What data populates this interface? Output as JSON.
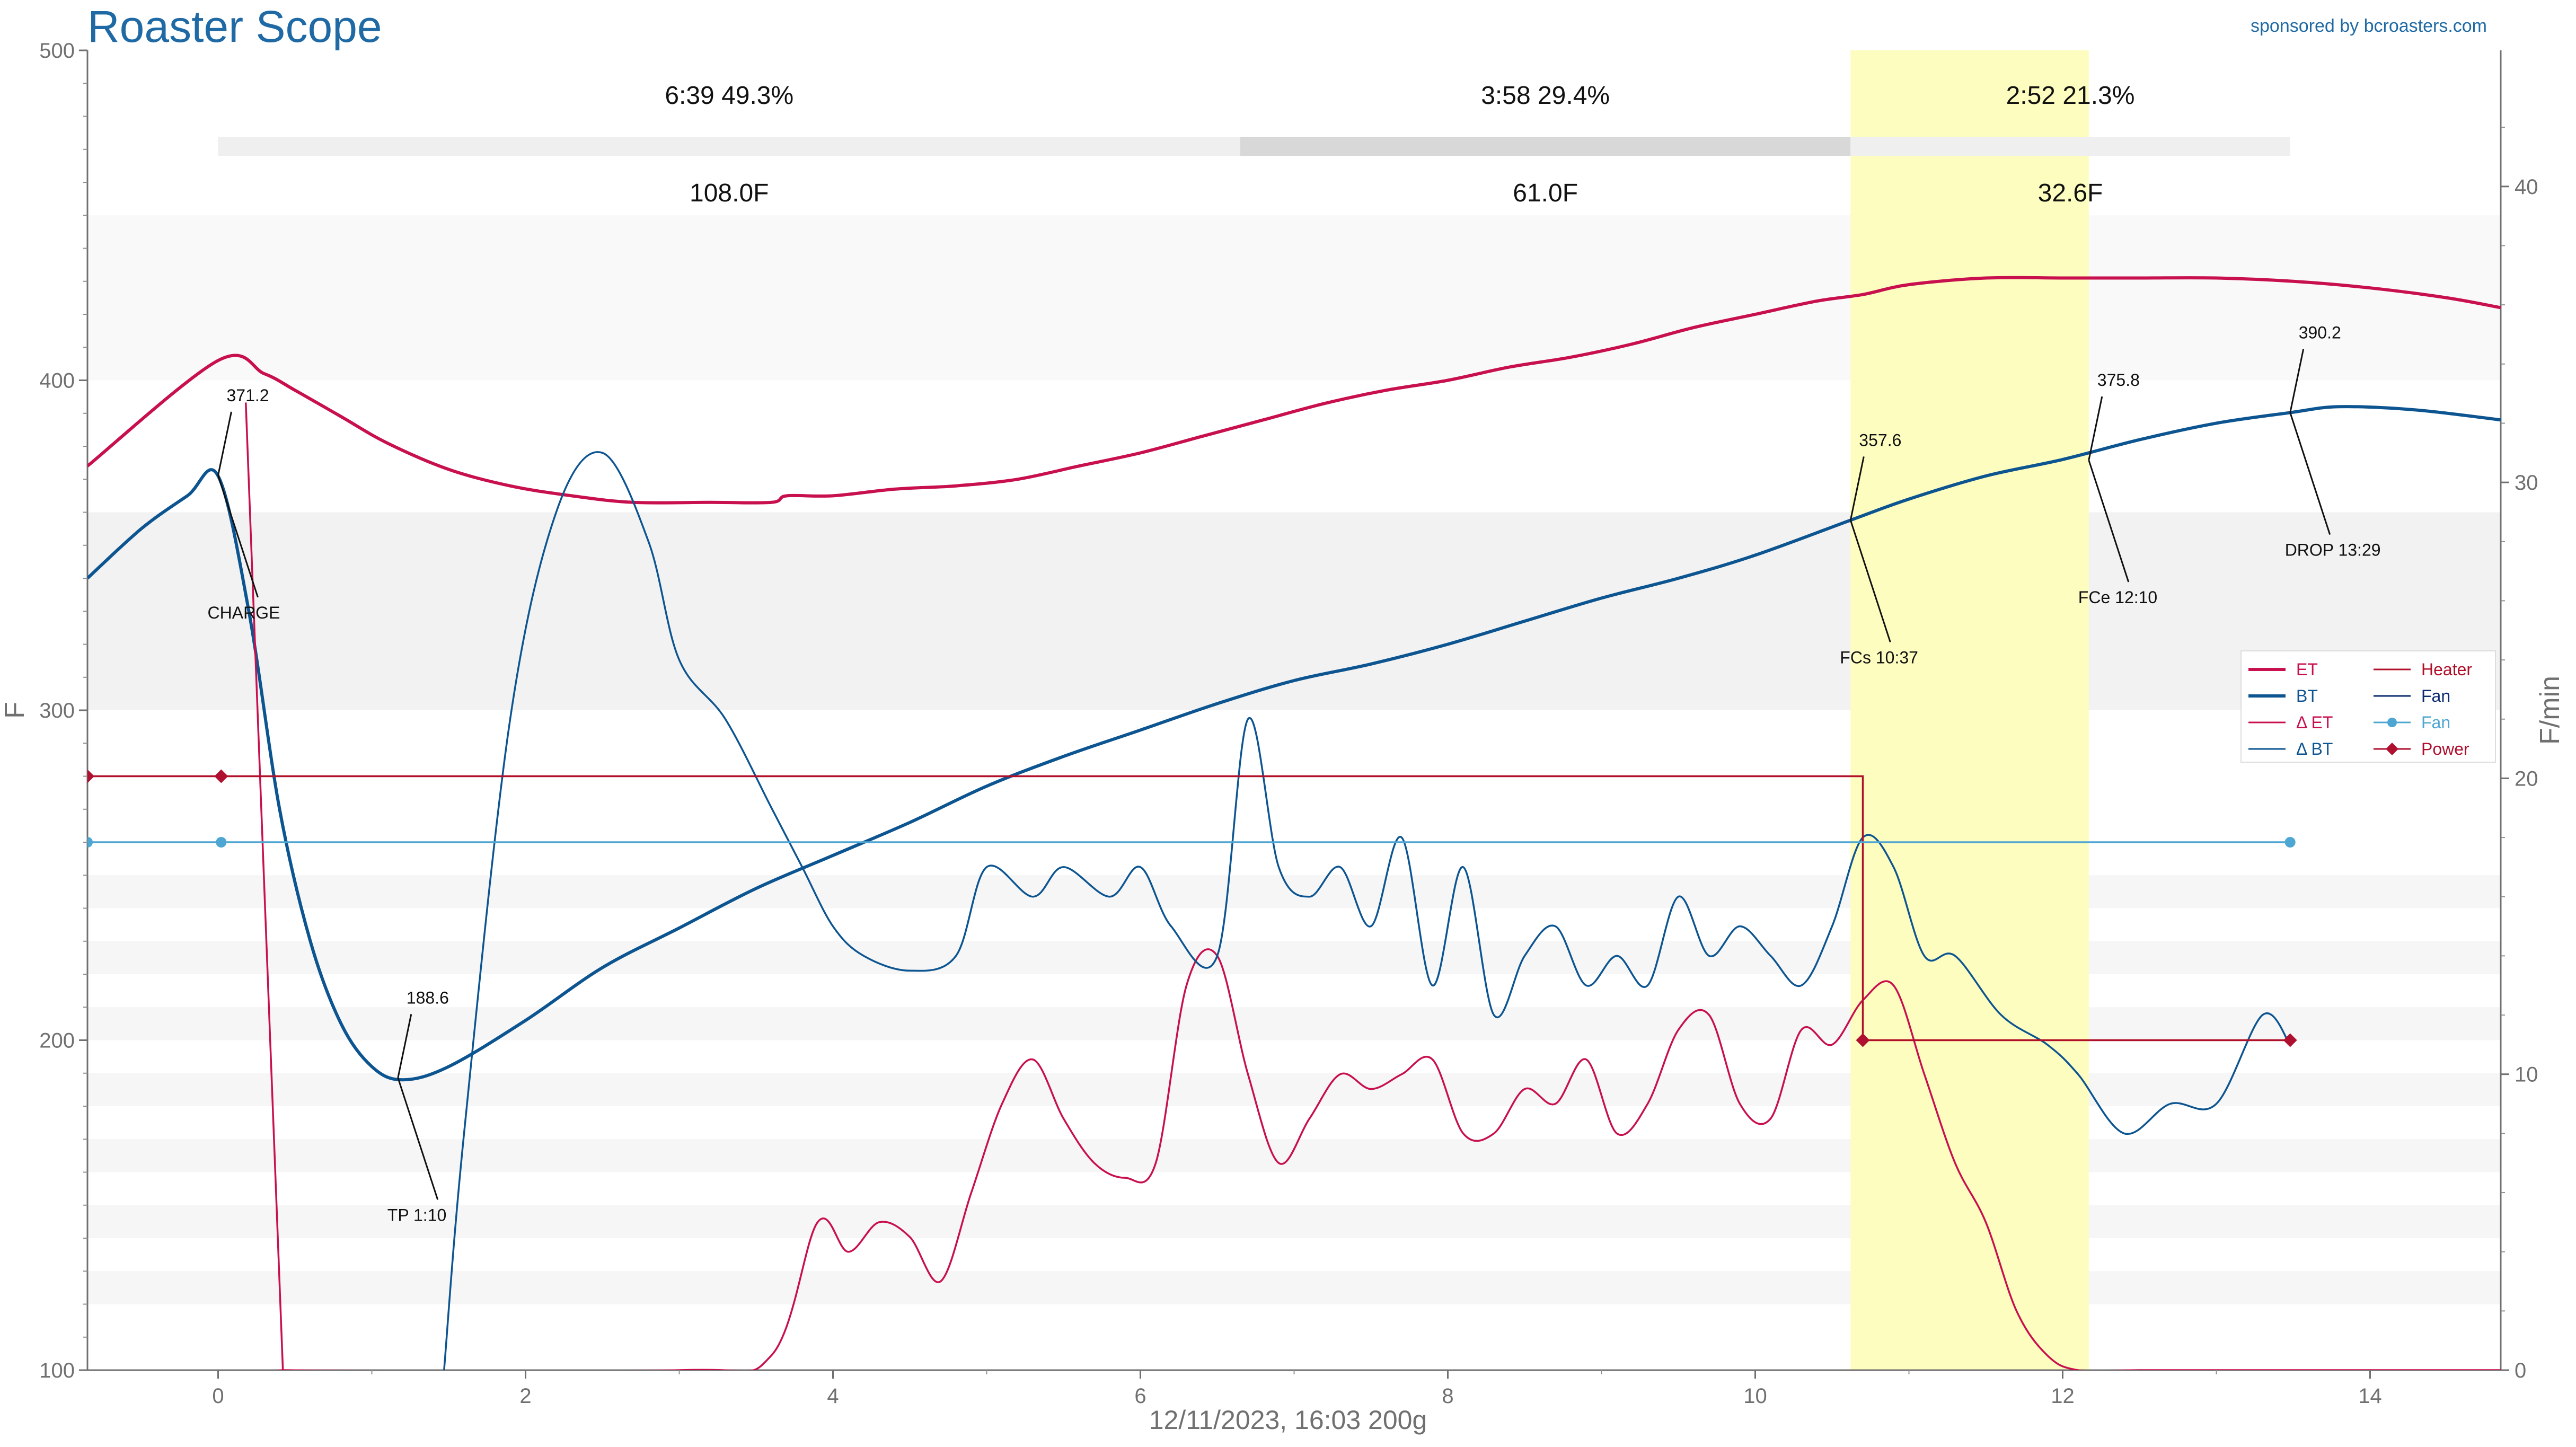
{
  "app": {
    "title": "Roaster Scope",
    "sponsor": "sponsored by bcroasters.com",
    "footer": "12/11/2023, 16:03   200g"
  },
  "colors": {
    "et": "#c8104e",
    "bt": "#0d5591",
    "delta_et": "#c8104e",
    "delta_bt": "#0d5591",
    "heater": "#b01028",
    "fan_setting": "#0a2c6e",
    "fan": "#4ea6d2",
    "power": "#b01030",
    "phase_highlight": "#fdfdc0",
    "title_blue": "#1f6aa5"
  },
  "chart_data": {
    "type": "line",
    "xlabel": "",
    "ylabel": "F",
    "y2label": "F/min",
    "xlim": [
      -0.85,
      14.85
    ],
    "ylim": [
      100,
      500
    ],
    "y2lim": [
      0,
      44.6
    ],
    "x_ticks": [
      "0",
      "2",
      "4",
      "6",
      "8",
      "10",
      "12",
      "14"
    ],
    "y_ticks": [
      "100",
      "200",
      "300",
      "400",
      "500"
    ],
    "y2_ticks": [
      "0",
      "10",
      "20",
      "30",
      "40"
    ],
    "grid": false,
    "legend_position": "right",
    "phases": [
      {
        "time_pct": "6:39  49.3%",
        "rise": "108.0F",
        "start": 0,
        "end": 6.65
      },
      {
        "time_pct": "3:58  29.4%",
        "rise": "61.0F",
        "start": 6.65,
        "end": 10.62
      },
      {
        "time_pct": "2:52  21.3%",
        "rise": "32.6F",
        "start": 10.62,
        "end": 13.48
      }
    ],
    "first_crack_window": [
      10.62,
      12.17
    ],
    "series": [
      {
        "name": "ET",
        "axis": "left",
        "x": [
          -0.85,
          0,
          0.3,
          0.5,
          0.8,
          1.1,
          1.5,
          1.9,
          2.3,
          2.7,
          3.2,
          3.6,
          3.7,
          4.0,
          4.4,
          4.8,
          5.2,
          5.6,
          6.0,
          6.4,
          6.8,
          7.2,
          7.6,
          8.0,
          8.4,
          8.8,
          9.2,
          9.6,
          10.0,
          10.4,
          10.7,
          11.0,
          11.5,
          12.0,
          12.5,
          13.0,
          13.5,
          14.0,
          14.5,
          14.85
        ],
        "y": [
          374,
          406,
          402,
          397,
          389,
          381,
          373,
          368,
          365,
          363,
          363,
          363,
          365,
          365,
          367,
          368,
          370,
          374,
          378,
          383,
          388,
          393,
          397,
          400,
          404,
          407,
          411,
          416,
          420,
          424,
          426,
          429,
          431,
          431,
          431,
          431,
          430,
          428,
          425,
          422
        ]
      },
      {
        "name": "BT",
        "axis": "left",
        "x": [
          -0.85,
          -0.5,
          -0.2,
          0,
          0.2,
          0.4,
          0.6,
          0.8,
          1.0,
          1.2,
          1.5,
          2.0,
          2.5,
          3.0,
          3.5,
          4.0,
          4.5,
          5.0,
          5.5,
          6.0,
          6.5,
          7.0,
          7.5,
          8.0,
          8.5,
          9.0,
          9.5,
          10.0,
          10.62,
          11.0,
          11.5,
          12.0,
          12.5,
          13.0,
          13.48,
          13.8,
          14.3,
          14.85
        ],
        "y": [
          340,
          355,
          365,
          371,
          330,
          270,
          230,
          205,
          192,
          188,
          192,
          206,
          222,
          234,
          246,
          256,
          266,
          277,
          286,
          294,
          302,
          309,
          314,
          320,
          327,
          334,
          340,
          347,
          357.6,
          364,
          371,
          376,
          382,
          387,
          390.2,
          392,
          391,
          388
        ]
      },
      {
        "name": "Δ ET",
        "axis": "right",
        "x": [
          0.18,
          0.42,
          0.43,
          3.0,
          3.6,
          3.9,
          4.1,
          4.3,
          4.5,
          4.7,
          4.9,
          5.1,
          5.3,
          5.5,
          5.7,
          5.9,
          6.1,
          6.3,
          6.5,
          6.7,
          6.9,
          7.1,
          7.3,
          7.5,
          7.7,
          7.9,
          8.1,
          8.3,
          8.5,
          8.7,
          8.9,
          9.1,
          9.3,
          9.5,
          9.7,
          9.9,
          10.1,
          10.3,
          10.5,
          10.7,
          10.9,
          11.1,
          11.3,
          11.5,
          11.7,
          11.9,
          12.1,
          12.5,
          13.0,
          13.5,
          14.85
        ],
        "y": [
          32.7,
          0.2,
          0,
          0,
          0.5,
          5.0,
          4.0,
          5.0,
          4.5,
          3.0,
          6.0,
          9.0,
          10.5,
          8.5,
          7.0,
          6.5,
          7.0,
          13.0,
          14.0,
          10.0,
          7.0,
          8.5,
          10.0,
          9.5,
          10.0,
          10.5,
          8.0,
          8.0,
          9.5,
          9.0,
          10.5,
          8.0,
          9.0,
          11.5,
          12.0,
          9.0,
          8.5,
          11.5,
          11.0,
          12.5,
          13.0,
          10.0,
          7.0,
          5.0,
          2.0,
          0.5,
          0,
          0,
          0,
          0,
          0
        ]
      },
      {
        "name": "Δ BT",
        "axis": "right",
        "x": [
          1.47,
          1.6,
          1.9,
          2.2,
          2.5,
          2.8,
          3.0,
          3.3,
          3.6,
          3.8,
          4.0,
          4.2,
          4.5,
          4.8,
          5.0,
          5.3,
          5.5,
          5.8,
          6.0,
          6.2,
          6.5,
          6.7,
          6.9,
          7.1,
          7.3,
          7.5,
          7.7,
          7.9,
          8.1,
          8.3,
          8.5,
          8.7,
          8.9,
          9.1,
          9.3,
          9.5,
          9.7,
          9.9,
          10.1,
          10.3,
          10.5,
          10.7,
          10.9,
          11.1,
          11.3,
          11.6,
          11.9,
          12.1,
          12.4,
          12.7,
          13.0,
          13.3,
          13.48
        ],
        "y": [
          0,
          8,
          22,
          29,
          31,
          28,
          24,
          22,
          19,
          17,
          15,
          14,
          13.5,
          14,
          17,
          16,
          17,
          16,
          17,
          15,
          14,
          22,
          17,
          16,
          17,
          15,
          18,
          13,
          17,
          12,
          14,
          15,
          13,
          14,
          13,
          16,
          14,
          15,
          14,
          13,
          15,
          18,
          17,
          14,
          14,
          12,
          11,
          10,
          8,
          9,
          9,
          12,
          11
        ]
      },
      {
        "name": "Heater",
        "axis": "left",
        "step": true,
        "x": [
          -0.85,
          10.7,
          10.7,
          13.48
        ],
        "y": [
          280,
          280,
          200,
          200
        ]
      },
      {
        "name": "Fan",
        "axis": "left",
        "x": [],
        "y": []
      },
      {
        "name": "Fan",
        "axis": "left",
        "markers": true,
        "x": [
          -0.85,
          0.02,
          13.48
        ],
        "y": [
          260,
          260,
          260
        ]
      },
      {
        "name": "Power",
        "axis": "left",
        "markers": true,
        "x": [
          -0.85,
          0.02,
          10.7,
          13.48
        ],
        "y": [
          280,
          280,
          200,
          200
        ]
      }
    ],
    "annotations": [
      {
        "label": "371.2",
        "x": 0,
        "y": 371.2,
        "dir": "up"
      },
      {
        "label": "CHARGE",
        "x": 0,
        "y": 371.2,
        "dir": "down"
      },
      {
        "label": "188.6",
        "x": 1.17,
        "y": 188.6,
        "dir": "up"
      },
      {
        "label": "TP 1:10",
        "x": 1.17,
        "y": 188.6,
        "dir": "down"
      },
      {
        "label": "357.6",
        "x": 10.62,
        "y": 357.6,
        "dir": "up"
      },
      {
        "label": "FCs 10:37",
        "x": 10.62,
        "y": 357.6,
        "dir": "down"
      },
      {
        "label": "375.8",
        "x": 12.17,
        "y": 375.8,
        "dir": "up"
      },
      {
        "label": "FCe 12:10",
        "x": 12.17,
        "y": 375.8,
        "dir": "down"
      },
      {
        "label": "390.2",
        "x": 13.48,
        "y": 390.2,
        "dir": "up"
      },
      {
        "label": "DROP 13:29",
        "x": 13.48,
        "y": 390.2,
        "dir": "down"
      }
    ]
  }
}
